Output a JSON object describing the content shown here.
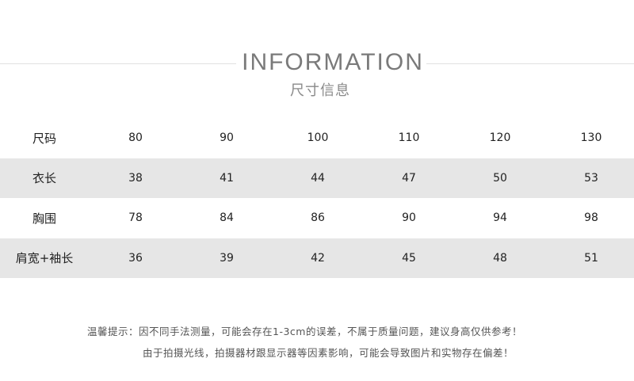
{
  "header": {
    "title": "INFORMATION",
    "subtitle": "尺寸信息"
  },
  "table": {
    "rows": [
      {
        "label": "尺码",
        "values": [
          "80",
          "90",
          "100",
          "110",
          "120",
          "130"
        ]
      },
      {
        "label": "衣长",
        "values": [
          "38",
          "41",
          "44",
          "47",
          "50",
          "53"
        ]
      },
      {
        "label": "胸围",
        "values": [
          "78",
          "84",
          "86",
          "90",
          "94",
          "98"
        ]
      },
      {
        "label": "肩宽+袖长",
        "values": [
          "36",
          "39",
          "42",
          "45",
          "48",
          "51"
        ]
      }
    ]
  },
  "notes": {
    "line1": "温馨提示：因不同手法测量，可能会存在1-3cm的误差，不属于质量问题，建议身高仅供参考！",
    "line2": "由于拍摄光线，拍摄器材跟显示器等因素影响，可能会导致图片和实物存在偏差！"
  },
  "colors": {
    "stripe": "#e6e6e6",
    "title": "#7a7a7a"
  }
}
